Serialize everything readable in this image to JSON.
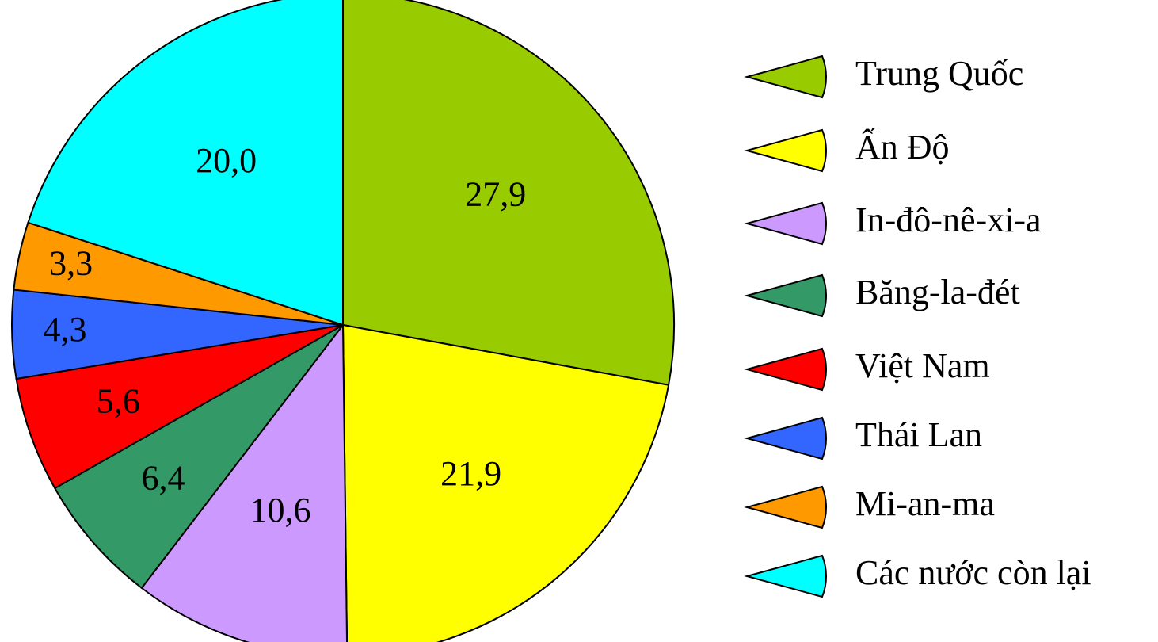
{
  "chart_data": {
    "type": "pie",
    "categories": [
      "Trung Quốc",
      "Ấn Độ",
      "In-đô-nê-xi-a",
      "Băng-la-đét",
      "Việt Nam",
      "Thái Lan",
      "Mi-an-ma",
      "Các nước còn lại"
    ],
    "values": [
      27.9,
      21.9,
      10.6,
      6.4,
      5.6,
      4.3,
      3.3,
      20.0
    ],
    "value_labels": [
      "27,9",
      "21,9",
      "10,6",
      "6,4",
      "5,6",
      "4,3",
      "3,3",
      "20,0"
    ],
    "colors": [
      "#99cc00",
      "#ffff00",
      "#cc99ff",
      "#339966",
      "#ff0000",
      "#3366ff",
      "#ff9900",
      "#00ffff"
    ],
    "legend": "right"
  }
}
